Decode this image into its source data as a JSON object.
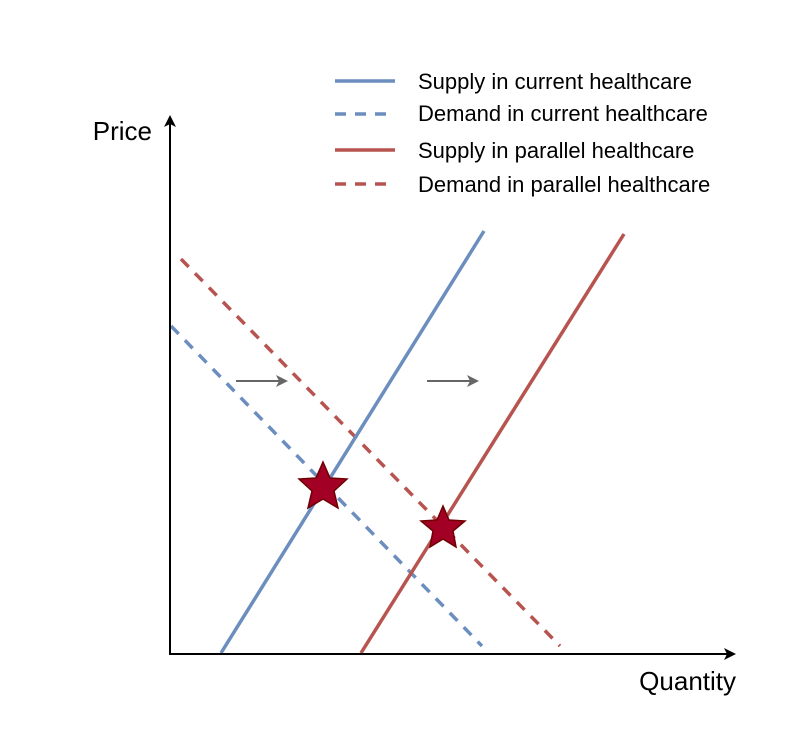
{
  "axes": {
    "y_label": "Price",
    "x_label": "Quantity"
  },
  "legend": {
    "items": [
      {
        "label": "Supply in current healthcare",
        "color": "#6c8ebf",
        "style": "solid"
      },
      {
        "label": "Demand in current healthcare",
        "color": "#6c8ebf",
        "style": "dashed"
      },
      {
        "label": "Supply in parallel healthcare",
        "color": "#b85450",
        "style": "solid"
      },
      {
        "label": "Demand in parallel healthcare",
        "color": "#b85450",
        "style": "dashed"
      }
    ]
  },
  "colors": {
    "axis": "#000000",
    "current": "#6c8ebf",
    "parallel": "#b85450",
    "shift_arrow": "#666666",
    "equilibrium_star_fill": "#a20025",
    "equilibrium_star_stroke": "#6f0000"
  },
  "annotations": {
    "shift_arrows": [
      "arrow-right-icon",
      "arrow-right-icon"
    ],
    "equilibrium_markers": [
      "star-icon",
      "star-icon"
    ]
  }
}
